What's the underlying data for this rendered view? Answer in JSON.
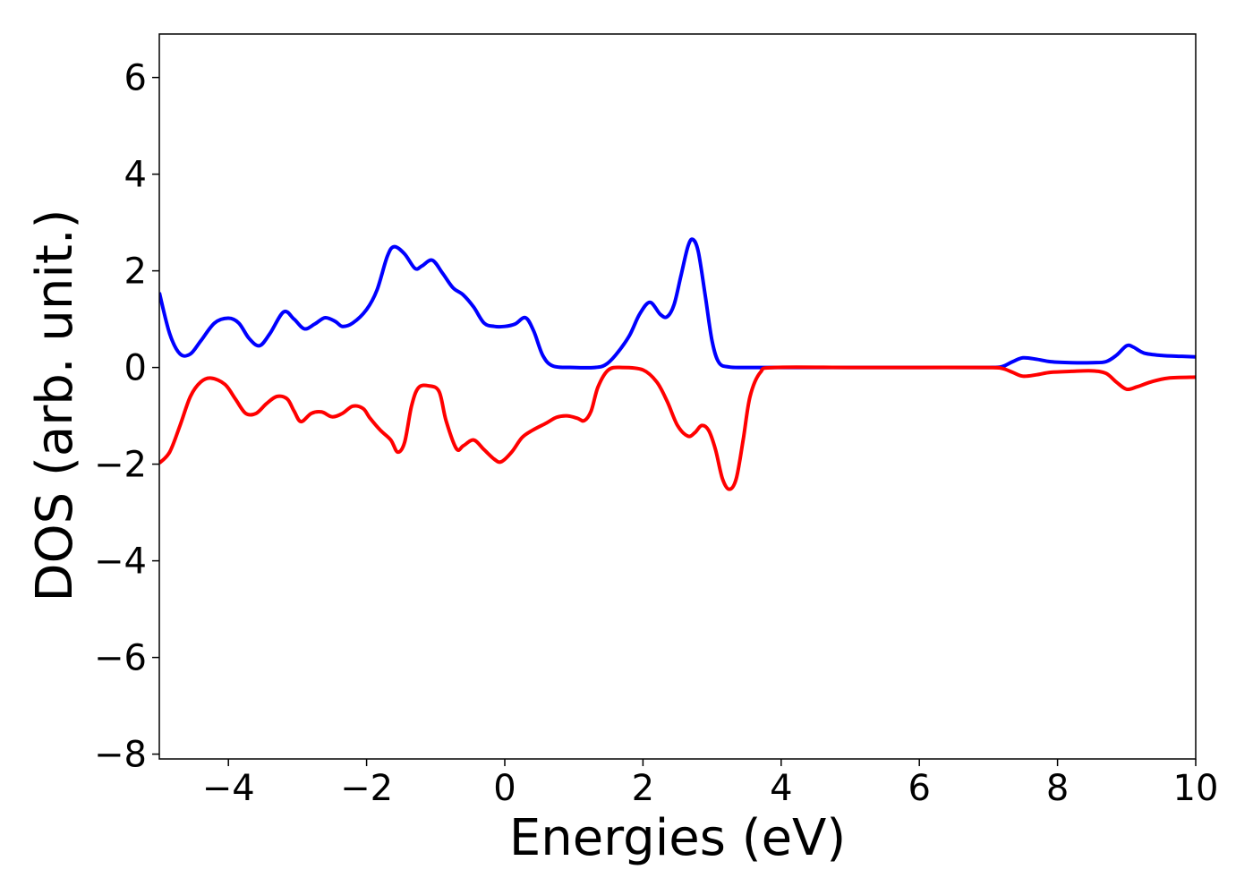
{
  "chart_data": {
    "type": "line",
    "xlabel": "Energies (eV)",
    "ylabel": "DOS (arb. unit.)",
    "xlim": [
      -5,
      10
    ],
    "ylim": [
      -8.1,
      6.9
    ],
    "xticks": [
      -4,
      -2,
      0,
      2,
      4,
      6,
      8,
      10
    ],
    "xtick_labels": [
      "−4",
      "−2",
      "0",
      "2",
      "4",
      "6",
      "8",
      "10"
    ],
    "yticks": [
      6,
      4,
      2,
      0,
      -2,
      -4,
      -6,
      -8
    ],
    "ytick_labels": [
      "6",
      "4",
      "2",
      "0",
      "−2",
      "−4",
      "−6",
      "−8"
    ],
    "grid": false,
    "legend": "none",
    "series": [
      {
        "color": "#0000ff",
        "points": [
          [
            -5.0,
            1.55
          ],
          [
            -4.85,
            0.7
          ],
          [
            -4.7,
            0.28
          ],
          [
            -4.55,
            0.28
          ],
          [
            -4.4,
            0.55
          ],
          [
            -4.2,
            0.92
          ],
          [
            -4.0,
            1.02
          ],
          [
            -3.85,
            0.92
          ],
          [
            -3.7,
            0.6
          ],
          [
            -3.55,
            0.45
          ],
          [
            -3.4,
            0.7
          ],
          [
            -3.2,
            1.15
          ],
          [
            -3.05,
            1.0
          ],
          [
            -2.9,
            0.8
          ],
          [
            -2.75,
            0.9
          ],
          [
            -2.6,
            1.03
          ],
          [
            -2.45,
            0.95
          ],
          [
            -2.35,
            0.85
          ],
          [
            -2.2,
            0.92
          ],
          [
            -2.0,
            1.2
          ],
          [
            -1.85,
            1.6
          ],
          [
            -1.7,
            2.3
          ],
          [
            -1.6,
            2.5
          ],
          [
            -1.45,
            2.35
          ],
          [
            -1.3,
            2.05
          ],
          [
            -1.2,
            2.1
          ],
          [
            -1.05,
            2.22
          ],
          [
            -0.9,
            1.95
          ],
          [
            -0.75,
            1.65
          ],
          [
            -0.6,
            1.5
          ],
          [
            -0.45,
            1.25
          ],
          [
            -0.3,
            0.92
          ],
          [
            -0.15,
            0.85
          ],
          [
            0.0,
            0.85
          ],
          [
            0.15,
            0.9
          ],
          [
            0.3,
            1.03
          ],
          [
            0.42,
            0.75
          ],
          [
            0.55,
            0.25
          ],
          [
            0.7,
            0.03
          ],
          [
            1.0,
            0.0
          ],
          [
            1.3,
            0.0
          ],
          [
            1.45,
            0.05
          ],
          [
            1.6,
            0.25
          ],
          [
            1.8,
            0.65
          ],
          [
            1.95,
            1.1
          ],
          [
            2.1,
            1.35
          ],
          [
            2.25,
            1.1
          ],
          [
            2.35,
            1.05
          ],
          [
            2.45,
            1.3
          ],
          [
            2.55,
            1.9
          ],
          [
            2.65,
            2.5
          ],
          [
            2.72,
            2.65
          ],
          [
            2.8,
            2.4
          ],
          [
            2.9,
            1.5
          ],
          [
            3.0,
            0.55
          ],
          [
            3.1,
            0.1
          ],
          [
            3.25,
            0.01
          ],
          [
            3.5,
            0.0
          ],
          [
            4.0,
            0.0
          ],
          [
            5.0,
            0.0
          ],
          [
            6.0,
            0.0
          ],
          [
            7.0,
            0.0
          ],
          [
            7.2,
            0.02
          ],
          [
            7.35,
            0.12
          ],
          [
            7.5,
            0.2
          ],
          [
            7.7,
            0.17
          ],
          [
            7.9,
            0.12
          ],
          [
            8.2,
            0.1
          ],
          [
            8.5,
            0.1
          ],
          [
            8.7,
            0.12
          ],
          [
            8.85,
            0.25
          ],
          [
            9.0,
            0.45
          ],
          [
            9.1,
            0.42
          ],
          [
            9.25,
            0.3
          ],
          [
            9.5,
            0.25
          ],
          [
            9.8,
            0.23
          ],
          [
            10.0,
            0.22
          ]
        ]
      },
      {
        "color": "#ff0000",
        "points": [
          [
            -5.0,
            -1.98
          ],
          [
            -4.85,
            -1.75
          ],
          [
            -4.7,
            -1.2
          ],
          [
            -4.55,
            -0.6
          ],
          [
            -4.4,
            -0.3
          ],
          [
            -4.25,
            -0.22
          ],
          [
            -4.05,
            -0.35
          ],
          [
            -3.9,
            -0.65
          ],
          [
            -3.75,
            -0.95
          ],
          [
            -3.6,
            -0.95
          ],
          [
            -3.45,
            -0.75
          ],
          [
            -3.3,
            -0.6
          ],
          [
            -3.15,
            -0.65
          ],
          [
            -3.05,
            -0.9
          ],
          [
            -2.95,
            -1.12
          ],
          [
            -2.8,
            -0.95
          ],
          [
            -2.65,
            -0.92
          ],
          [
            -2.5,
            -1.02
          ],
          [
            -2.35,
            -0.95
          ],
          [
            -2.2,
            -0.8
          ],
          [
            -2.05,
            -0.85
          ],
          [
            -1.95,
            -1.05
          ],
          [
            -1.8,
            -1.3
          ],
          [
            -1.65,
            -1.5
          ],
          [
            -1.55,
            -1.75
          ],
          [
            -1.45,
            -1.55
          ],
          [
            -1.35,
            -0.8
          ],
          [
            -1.25,
            -0.42
          ],
          [
            -1.1,
            -0.38
          ],
          [
            -0.95,
            -0.5
          ],
          [
            -0.85,
            -1.1
          ],
          [
            -0.7,
            -1.68
          ],
          [
            -0.6,
            -1.62
          ],
          [
            -0.45,
            -1.5
          ],
          [
            -0.3,
            -1.7
          ],
          [
            -0.15,
            -1.9
          ],
          [
            -0.05,
            -1.95
          ],
          [
            0.1,
            -1.75
          ],
          [
            0.25,
            -1.45
          ],
          [
            0.4,
            -1.3
          ],
          [
            0.6,
            -1.15
          ],
          [
            0.75,
            -1.03
          ],
          [
            0.9,
            -1.0
          ],
          [
            1.05,
            -1.05
          ],
          [
            1.15,
            -1.1
          ],
          [
            1.25,
            -0.9
          ],
          [
            1.35,
            -0.4
          ],
          [
            1.5,
            -0.05
          ],
          [
            1.7,
            0.0
          ],
          [
            2.0,
            -0.05
          ],
          [
            2.2,
            -0.3
          ],
          [
            2.35,
            -0.7
          ],
          [
            2.5,
            -1.2
          ],
          [
            2.65,
            -1.42
          ],
          [
            2.75,
            -1.35
          ],
          [
            2.85,
            -1.2
          ],
          [
            2.95,
            -1.3
          ],
          [
            3.05,
            -1.7
          ],
          [
            3.15,
            -2.3
          ],
          [
            3.25,
            -2.52
          ],
          [
            3.35,
            -2.3
          ],
          [
            3.45,
            -1.5
          ],
          [
            3.55,
            -0.6
          ],
          [
            3.7,
            -0.1
          ],
          [
            3.9,
            0.0
          ],
          [
            5.0,
            0.0
          ],
          [
            6.0,
            0.0
          ],
          [
            7.0,
            0.0
          ],
          [
            7.2,
            -0.02
          ],
          [
            7.35,
            -0.1
          ],
          [
            7.5,
            -0.18
          ],
          [
            7.7,
            -0.15
          ],
          [
            7.9,
            -0.1
          ],
          [
            8.2,
            -0.08
          ],
          [
            8.5,
            -0.07
          ],
          [
            8.7,
            -0.12
          ],
          [
            8.85,
            -0.3
          ],
          [
            9.0,
            -0.45
          ],
          [
            9.15,
            -0.4
          ],
          [
            9.35,
            -0.3
          ],
          [
            9.6,
            -0.22
          ],
          [
            10.0,
            -0.2
          ]
        ]
      }
    ]
  }
}
